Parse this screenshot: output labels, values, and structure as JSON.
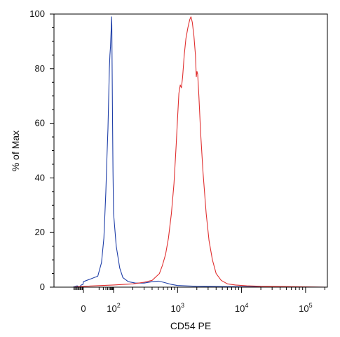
{
  "chart_data": {
    "type": "line",
    "title": "",
    "xlabel": "CD54 PE",
    "ylabel": "% of Max",
    "x_scale": "biexponential",
    "x_ticks": [
      {
        "value": 0,
        "label": "0"
      },
      {
        "value": 100,
        "label": "10",
        "exp": "2"
      },
      {
        "value": 1000,
        "label": "10",
        "exp": "3"
      },
      {
        "value": 10000,
        "label": "10",
        "exp": "4"
      },
      {
        "value": 100000,
        "label": "10",
        "exp": "5"
      }
    ],
    "y_ticks": [
      0,
      20,
      40,
      60,
      80,
      100
    ],
    "ylim": [
      0,
      100
    ],
    "grid": false,
    "series": [
      {
        "color": "#1f3fa8",
        "points": [
          [
            -100,
            0
          ],
          [
            -60,
            0.5
          ],
          [
            -40,
            0
          ],
          [
            -20,
            0.8
          ],
          [
            -5,
            1
          ],
          [
            0,
            2
          ],
          [
            8,
            4
          ],
          [
            15,
            9
          ],
          [
            22,
            18
          ],
          [
            30,
            35
          ],
          [
            36,
            48
          ],
          [
            42,
            58
          ],
          [
            47,
            70
          ],
          [
            52,
            80
          ],
          [
            57,
            85
          ],
          [
            62,
            88
          ],
          [
            66,
            92
          ],
          [
            70,
            95
          ],
          [
            73,
            99
          ],
          [
            76,
            96
          ],
          [
            80,
            82
          ],
          [
            85,
            62
          ],
          [
            92,
            42
          ],
          [
            100,
            27
          ],
          [
            110,
            15
          ],
          [
            125,
            7
          ],
          [
            140,
            3.5
          ],
          [
            170,
            2
          ],
          [
            220,
            1.5
          ],
          [
            300,
            1.5
          ],
          [
            400,
            2
          ],
          [
            500,
            2.2
          ],
          [
            600,
            1.8
          ],
          [
            800,
            1
          ],
          [
            1000,
            0.6
          ],
          [
            2000,
            0.3
          ],
          [
            5000,
            0.2
          ],
          [
            20000,
            0.1
          ],
          [
            250000,
            0
          ]
        ]
      },
      {
        "color": "#e03030",
        "points": [
          [
            -100,
            0
          ],
          [
            0,
            0.3
          ],
          [
            100,
            0.8
          ],
          [
            200,
            1.2
          ],
          [
            300,
            1.8
          ],
          [
            400,
            2.5
          ],
          [
            470,
            4
          ],
          [
            520,
            5
          ],
          [
            580,
            8
          ],
          [
            650,
            12
          ],
          [
            720,
            18
          ],
          [
            800,
            27
          ],
          [
            880,
            38
          ],
          [
            950,
            52
          ],
          [
            1000,
            62
          ],
          [
            1050,
            71
          ],
          [
            1100,
            74
          ],
          [
            1150,
            73
          ],
          [
            1200,
            77
          ],
          [
            1270,
            85
          ],
          [
            1350,
            91
          ],
          [
            1450,
            95
          ],
          [
            1550,
            98
          ],
          [
            1620,
            99
          ],
          [
            1700,
            97
          ],
          [
            1800,
            92
          ],
          [
            1900,
            85
          ],
          [
            1960,
            77
          ],
          [
            2010,
            79
          ],
          [
            2060,
            78
          ],
          [
            2150,
            70
          ],
          [
            2300,
            56
          ],
          [
            2500,
            42
          ],
          [
            2800,
            27
          ],
          [
            3100,
            17
          ],
          [
            3500,
            10
          ],
          [
            4000,
            5
          ],
          [
            4800,
            2.5
          ],
          [
            6000,
            1.2
          ],
          [
            8000,
            0.8
          ],
          [
            12000,
            0.5
          ],
          [
            20000,
            0.3
          ],
          [
            50000,
            0.2
          ],
          [
            250000,
            0
          ]
        ]
      }
    ]
  }
}
